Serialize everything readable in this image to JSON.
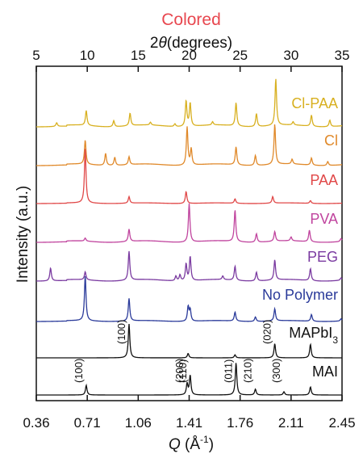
{
  "title": "Colored",
  "colors": {
    "title": "#e8474f",
    "axis": "#111111"
  },
  "chart_data": {
    "type": "line",
    "title": "Colored",
    "top_axis": {
      "label": "2θ(degrees)",
      "ticks": [
        5,
        10,
        15,
        20,
        25,
        30,
        35
      ],
      "range": [
        5,
        35
      ]
    },
    "bottom_axis": {
      "label": "Q (Å⁻¹)",
      "label_main": "Q (Å",
      "label_sup": "-1",
      "label_close": ")",
      "ticks": [
        "0.36",
        "0.71",
        "1.06",
        "1.41",
        "1.76",
        "2.11",
        "2.45"
      ],
      "range": [
        0.36,
        2.45
      ]
    },
    "ylabel": "Intensity (a.u.)",
    "series": [
      {
        "name": "Cl-PAA",
        "color": "#d8b020",
        "peaks": [
          [
            7.0,
            0.08
          ],
          [
            9.9,
            0.32
          ],
          [
            12.6,
            0.13
          ],
          [
            14.2,
            0.27
          ],
          [
            16.2,
            0.06
          ],
          [
            18.6,
            0.06
          ],
          [
            19.7,
            0.55
          ],
          [
            20.1,
            0.5
          ],
          [
            22.3,
            0.07
          ],
          [
            24.6,
            0.5
          ],
          [
            26.6,
            0.28
          ],
          [
            28.5,
            1.0
          ],
          [
            30.2,
            0.07
          ],
          [
            32.0,
            0.24
          ],
          [
            33.8,
            0.14
          ]
        ]
      },
      {
        "name": "Cl",
        "color": "#e0892a",
        "peaks": [
          [
            9.8,
            0.6
          ],
          [
            11.8,
            0.3
          ],
          [
            12.7,
            0.2
          ],
          [
            14.1,
            0.2
          ],
          [
            19.8,
            0.95
          ],
          [
            20.2,
            0.4
          ],
          [
            24.6,
            0.45
          ],
          [
            26.5,
            0.25
          ],
          [
            28.4,
            1.0
          ],
          [
            30.1,
            0.12
          ],
          [
            32.0,
            0.18
          ],
          [
            33.6,
            0.1
          ]
        ]
      },
      {
        "name": "PAA",
        "color": "#e04848",
        "peaks": [
          [
            9.8,
            1.0
          ],
          [
            14.1,
            0.12
          ],
          [
            19.7,
            0.22
          ],
          [
            24.5,
            0.08
          ],
          [
            28.2,
            0.12
          ],
          [
            31.9,
            0.05
          ]
        ]
      },
      {
        "name": "PVA",
        "color": "#c0449e",
        "peaks": [
          [
            9.8,
            0.08
          ],
          [
            14.1,
            0.32
          ],
          [
            20.0,
            1.0
          ],
          [
            24.5,
            0.82
          ],
          [
            26.6,
            0.22
          ],
          [
            28.4,
            0.25
          ],
          [
            30.0,
            0.1
          ],
          [
            31.8,
            0.3
          ],
          [
            34.9,
            0.08
          ]
        ]
      },
      {
        "name": "PEG",
        "color": "#7a3aa0",
        "peaks": [
          [
            6.4,
            0.32
          ],
          [
            9.8,
            0.2
          ],
          [
            14.1,
            0.72
          ],
          [
            18.7,
            0.12
          ],
          [
            19.1,
            0.15
          ],
          [
            19.7,
            0.42
          ],
          [
            20.1,
            0.6
          ],
          [
            23.3,
            0.09
          ],
          [
            24.5,
            0.35
          ],
          [
            26.6,
            0.22
          ],
          [
            28.4,
            0.5
          ],
          [
            31.9,
            0.3
          ],
          [
            34.9,
            0.06
          ]
        ]
      },
      {
        "name": "No Polymer",
        "color": "#2a3a9a",
        "peaks": [
          [
            9.8,
            1.0
          ],
          [
            14.1,
            0.5
          ],
          [
            19.9,
            0.32
          ],
          [
            20.1,
            0.25
          ],
          [
            24.5,
            0.2
          ],
          [
            26.5,
            0.1
          ],
          [
            28.4,
            0.27
          ],
          [
            32.0,
            0.15
          ],
          [
            34.9,
            0.05
          ]
        ]
      },
      {
        "name": "MAPbI",
        "name_sub": "3",
        "color": "#111111",
        "peaks": [
          [
            14.1,
            1.0
          ],
          [
            19.9,
            0.13
          ],
          [
            24.5,
            0.09
          ],
          [
            28.4,
            0.42
          ],
          [
            31.9,
            0.4
          ]
        ]
      },
      {
        "name": "MAI",
        "color": "#111111",
        "peaks": [
          [
            9.9,
            0.3
          ],
          [
            19.8,
            0.35
          ],
          [
            20.1,
            0.6
          ],
          [
            24.6,
            1.0
          ],
          [
            26.5,
            0.18
          ],
          [
            29.3,
            0.1
          ],
          [
            31.9,
            0.25
          ]
        ]
      }
    ],
    "reflections": {
      "MAPbI3": [
        {
          "label": "(100)",
          "x": 14.1
        },
        {
          "label": "(020)",
          "x": 28.4
        }
      ],
      "MAI": [
        {
          "label": "(100)",
          "x": 9.9
        },
        {
          "label": "(200)",
          "x": 19.8
        },
        {
          "label": "(110)",
          "x": 20.1
        },
        {
          "label": "(011)",
          "x": 24.6
        },
        {
          "label": "(210)",
          "x": 26.5
        },
        {
          "label": "(300)",
          "x": 29.3
        }
      ]
    },
    "grid": false,
    "legend": "inline-right"
  }
}
